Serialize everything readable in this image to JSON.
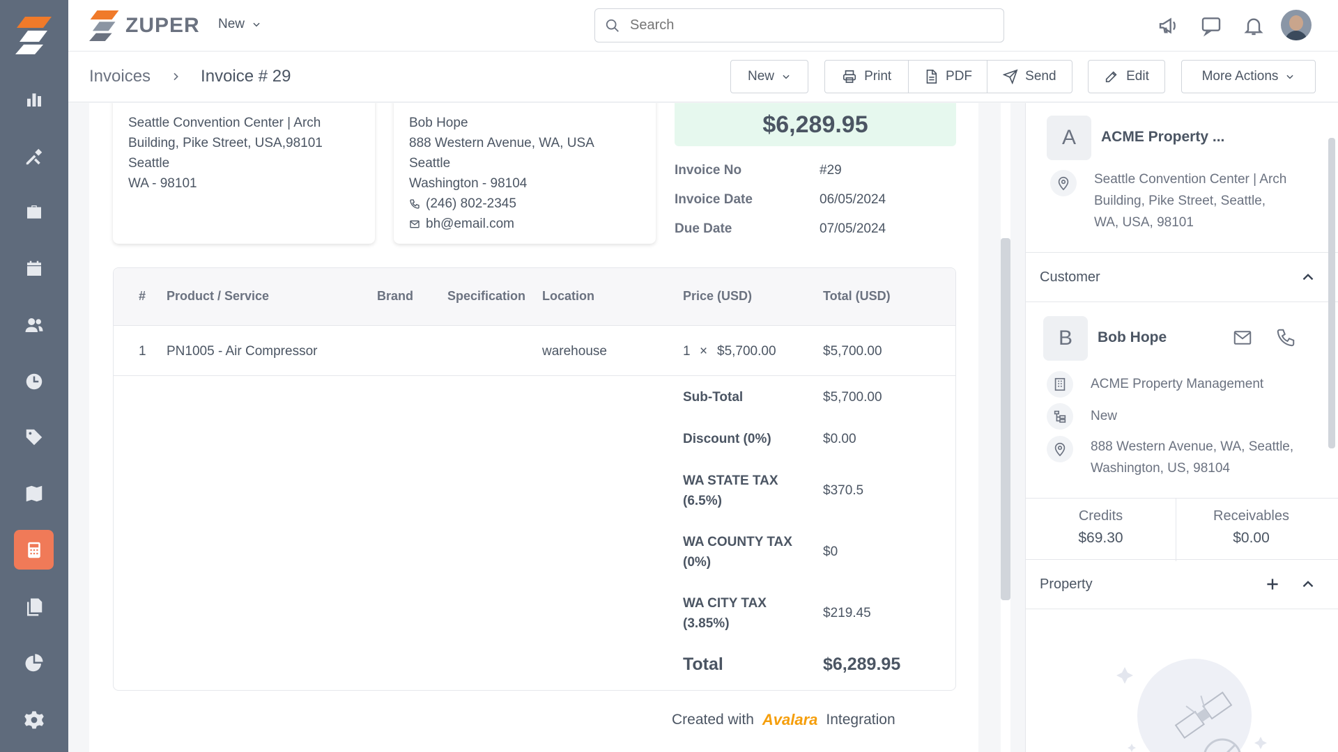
{
  "colors": {
    "sidebar": "#5f6b7c",
    "active": "#f07a58",
    "accent_green": "#e6f8ee"
  },
  "brand": {
    "name": "ZUPER"
  },
  "header": {
    "new_label": "New",
    "search_placeholder": "Search"
  },
  "sidebar": {
    "items": [
      {
        "icon": "bar-chart-icon"
      },
      {
        "icon": "tools-icon"
      },
      {
        "icon": "briefcase-icon"
      },
      {
        "icon": "calendar-icon"
      },
      {
        "icon": "users-icon"
      },
      {
        "icon": "clock-icon"
      },
      {
        "icon": "tag-icon"
      },
      {
        "icon": "map-icon"
      },
      {
        "icon": "calculator-icon",
        "active": true
      },
      {
        "icon": "documents-icon"
      },
      {
        "icon": "pie-chart-icon"
      },
      {
        "icon": "settings-icon"
      }
    ]
  },
  "breadcrumb": {
    "parent": "Invoices",
    "current": "Invoice # 29"
  },
  "toolbar": {
    "new": "New",
    "print": "Print",
    "pdf": "PDF",
    "send": "Send",
    "edit": "Edit",
    "more": "More Actions"
  },
  "service_address": {
    "line1": "Seattle Convention Center | Arch",
    "line2": "Building, Pike Street, USA,98101",
    "line3": "Seattle",
    "line4": "WA - 98101"
  },
  "billing_address": {
    "name": "Bob Hope",
    "line1": "888 Western Avenue, WA, USA",
    "line2": "Seattle",
    "line3": "Washington - 98104",
    "phone": "(246) 802-2345",
    "email": "bh@email.com"
  },
  "invoice": {
    "total": "$6,289.95",
    "no_label": "Invoice No",
    "no": "#29",
    "date_label": "Invoice Date",
    "date": "06/05/2024",
    "due_label": "Due Date",
    "due": "07/05/2024"
  },
  "table": {
    "headers": {
      "num": "#",
      "product": "Product / Service",
      "brand": "Brand",
      "spec": "Specification",
      "location": "Location",
      "price": "Price (USD)",
      "total": "Total (USD)"
    },
    "rows": [
      {
        "num": "1",
        "product": "PN1005 - Air Compressor",
        "brand": "",
        "spec": "",
        "location": "warehouse",
        "qty": "1",
        "times": "×",
        "price": "$5,700.00",
        "total": "$5,700.00"
      }
    ]
  },
  "summary": {
    "subtotal_label": "Sub-Total",
    "subtotal": "$5,700.00",
    "discount_label": "Discount (0%)",
    "discount": "$0.00",
    "state_tax_label_1": "WA STATE TAX",
    "state_tax_label_2": "(6.5%)",
    "state_tax": "$370.5",
    "county_tax_label_1": "WA COUNTY TAX",
    "county_tax_label_2": "(0%)",
    "county_tax": "$0",
    "city_tax_label_1": "WA CITY TAX",
    "city_tax_label_2": "(3.85%)",
    "city_tax": "$219.45",
    "total_label": "Total",
    "total": "$6,289.95"
  },
  "footer": {
    "created_with": "Created with",
    "avalara": "Avalara",
    "integration": "Integration"
  },
  "right_panel": {
    "org_letter": "A",
    "org_name": "ACME Property ...",
    "org_address_1": "Seattle Convention Center | Arch",
    "org_address_2": "Building, Pike Street, Seattle,",
    "org_address_3": "WA, USA, 98101",
    "customer_section": "Customer",
    "customer_letter": "B",
    "customer_name": "Bob Hope",
    "customer_company": "ACME Property Management",
    "customer_status": "New",
    "customer_address_1": "888 Western Avenue, WA, Seattle,",
    "customer_address_2": "Washington, US, 98104",
    "credits_label": "Credits",
    "credits": "$69.30",
    "receivables_label": "Receivables",
    "receivables": "$0.00",
    "property_section": "Property"
  }
}
